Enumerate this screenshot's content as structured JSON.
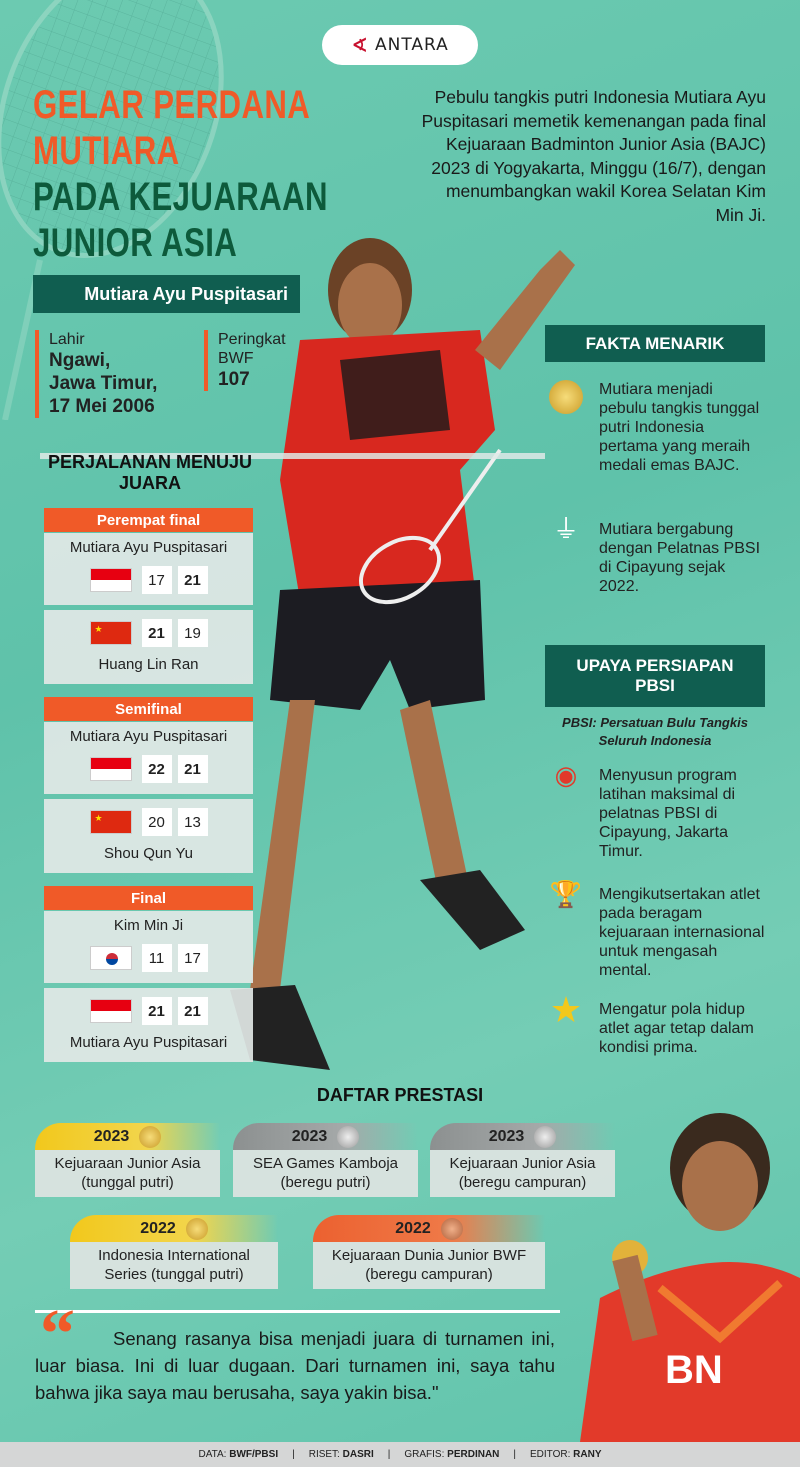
{
  "logo": {
    "text": "ANTARA"
  },
  "title": {
    "line1": "GELAR PERDANA MUTIARA",
    "line2": "PADA KEJUARAAN",
    "line3": "JUNIOR ASIA"
  },
  "intro": "Pebulu tangkis putri Indonesia Mutiara Ayu Puspitasari memetik kemenangan pada final Kejuaraan Badminton Junior Asia (BAJC) 2023 di Yogyakarta, Minggu (16/7), dengan menumbangkan wakil Korea Selatan Kim Min Ji.",
  "profile": {
    "name": "Mutiara Ayu Puspitasari",
    "born_label": "Lahir",
    "born_line1": "Ngawi,",
    "born_line2": "Jawa Timur,",
    "born_line3": "17 Mei 2006",
    "rank_label1": "Peringkat",
    "rank_label2": "BWF",
    "rank_value": "107"
  },
  "journey": {
    "title1": "PERJALANAN MENUJU",
    "title2": "JUARA",
    "stages": [
      {
        "name": "Perempat final",
        "top": {
          "player": "Mutiara Ayu Puspitasari",
          "flag": "indonesia",
          "s1": "17",
          "s2": "21"
        },
        "bottom": {
          "player": "Huang Lin Ran",
          "flag": "china",
          "s1": "21",
          "s2": "19"
        }
      },
      {
        "name": "Semifinal",
        "top": {
          "player": "Mutiara Ayu Puspitasari",
          "flag": "indonesia",
          "s1": "22",
          "s2": "21"
        },
        "bottom": {
          "player": "Shou Qun Yu",
          "flag": "china",
          "s1": "20",
          "s2": "13"
        }
      },
      {
        "name": "Final",
        "top": {
          "player": "Kim Min Ji",
          "flag": "south-korea",
          "s1": "11",
          "s2": "17"
        },
        "bottom": {
          "player": "Mutiara Ayu Puspitasari",
          "flag": "indonesia",
          "s1": "21",
          "s2": "21"
        }
      }
    ]
  },
  "facts": {
    "title": "FAKTA MENARIK",
    "items": [
      {
        "icon": "gold-medal-icon",
        "text": "Mutiara menjadi pebulu tangkis tunggal putri Indonesia pertama yang meraih medali emas BAJC."
      },
      {
        "icon": "shuttlecock-icon",
        "text": "Mutiara bergabung dengan Pelatnas PBSI di Cipayung sejak 2022."
      }
    ]
  },
  "prep": {
    "title1": "UPAYA PERSIAPAN",
    "title2": "PBSI",
    "subtitle": "PBSI: Persatuan Bulu Tangkis Seluruh Indonesia",
    "items": [
      {
        "icon": "location-shuttlecock-icon",
        "text": "Menyusun program latihan maksimal di pelatnas PBSI di Cipayung, Jakarta Timur."
      },
      {
        "icon": "trophy-shuttlecock-icon",
        "text": "Mengikutsertakan atlet pada beragam kejuaraan internasional untuk mengasah mental."
      },
      {
        "icon": "star-icon",
        "text": "Mengatur pola hidup atlet agar tetap dalam kondisi prima."
      }
    ]
  },
  "achievements": {
    "title": "DAFTAR PRESTASI",
    "items": [
      {
        "year": "2023",
        "medal": "gold",
        "line1": "Kejuaraan Junior Asia",
        "line2": "(tunggal putri)"
      },
      {
        "year": "2023",
        "medal": "silver",
        "line1": "SEA Games Kamboja",
        "line2": "(beregu putri)"
      },
      {
        "year": "2023",
        "medal": "silver",
        "line1": "Kejuaraan Junior Asia",
        "line2": "(beregu campuran)"
      },
      {
        "year": "2022",
        "medal": "gold",
        "line1": "Indonesia International",
        "line2": "Series (tunggal putri)"
      },
      {
        "year": "2022",
        "medal": "bronze",
        "line1": "Kejuaraan Dunia Junior BWF",
        "line2": "(beregu campuran)"
      }
    ]
  },
  "quote": "Senang rasanya bisa menjadi juara di turnamen ini, luar biasa. Ini di luar dugaan. Dari turnamen ini, saya tahu bahwa jika saya mau berusaha, saya yakin bisa.\"",
  "footer": {
    "data_label": "DATA:",
    "data": "BWF/PBSI",
    "riset_label": "RISET:",
    "riset": "DASRI",
    "grafis_label": "GRAFIS:",
    "grafis": "PERDINAN",
    "editor_label": "EDITOR:",
    "editor": "RANY",
    "sep": "|"
  },
  "colors": {
    "accent": "#f05a28",
    "dark_green": "#105e50",
    "background": "#5fc2aa"
  }
}
